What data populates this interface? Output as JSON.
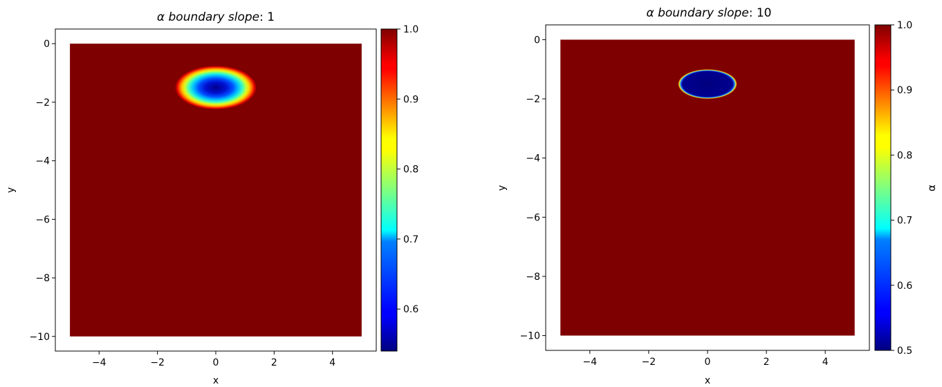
{
  "chart_data": [
    {
      "type": "heatmap",
      "title_italic": "α boundary slope",
      "title_value": ": 1",
      "xlabel": "x",
      "ylabel": "y",
      "colorbar_label": "",
      "xlim": [
        -5.5,
        5.5
      ],
      "ylim": [
        -10.5,
        0.5
      ],
      "xticks": [
        -4,
        -2,
        0,
        2,
        4
      ],
      "yticks": [
        0,
        -2,
        -4,
        -6,
        -8,
        -10
      ],
      "xtick_labels": [
        "−4",
        "−2",
        "0",
        "2",
        "4"
      ],
      "ytick_labels": [
        "0",
        "−2",
        "−4",
        "−6",
        "−8",
        "−10"
      ],
      "field_extent": {
        "x": [
          -5,
          5
        ],
        "y": [
          -10,
          0
        ]
      },
      "background_alpha": 1.0,
      "inclusion": {
        "center": [
          0,
          -1.5
        ],
        "radii": [
          1.4,
          0.75
        ],
        "min_alpha": 0.54,
        "boundary": "smooth"
      },
      "colorbar": {
        "range": [
          0.54,
          1.0
        ],
        "ticks": [
          0.6,
          0.7,
          0.8,
          0.9,
          1.0
        ],
        "tick_labels": [
          "0.6",
          "0.7",
          "0.8",
          "0.9",
          "1.0"
        ],
        "colormap": "jet"
      }
    },
    {
      "type": "heatmap",
      "title_italic": "α boundary slope",
      "title_value": ": 10",
      "xlabel": "x",
      "ylabel": "y",
      "colorbar_label": "α",
      "xlim": [
        -5.5,
        5.5
      ],
      "ylim": [
        -10.5,
        0.5
      ],
      "xticks": [
        -4,
        -2,
        0,
        2,
        4
      ],
      "yticks": [
        0,
        -2,
        -4,
        -6,
        -8,
        -10
      ],
      "xtick_labels": [
        "−4",
        "−2",
        "0",
        "2",
        "4"
      ],
      "ytick_labels": [
        "0",
        "−2",
        "−4",
        "−6",
        "−8",
        "−10"
      ],
      "field_extent": {
        "x": [
          -5,
          5
        ],
        "y": [
          -10,
          0
        ]
      },
      "background_alpha": 1.0,
      "inclusion": {
        "center": [
          0,
          -1.5
        ],
        "radii": [
          1.0,
          0.5
        ],
        "min_alpha": 0.5,
        "boundary": "sharp"
      },
      "colorbar": {
        "range": [
          0.5,
          1.0
        ],
        "ticks": [
          0.5,
          0.6,
          0.7,
          0.8,
          0.9,
          1.0
        ],
        "tick_labels": [
          "0.5",
          "0.6",
          "0.7",
          "0.8",
          "0.9",
          "1.0"
        ],
        "colormap": "jet"
      }
    }
  ]
}
